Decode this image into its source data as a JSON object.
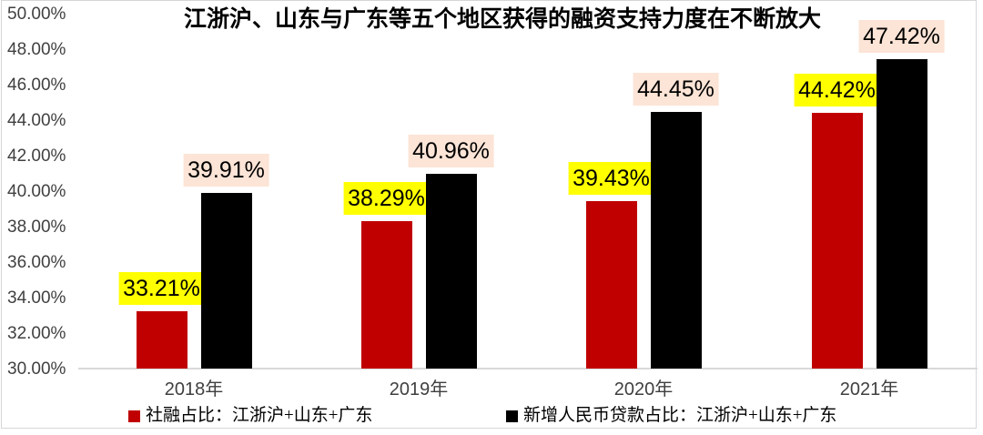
{
  "chart_data": {
    "type": "bar",
    "title": "江浙沪、山东与广东等五个地区获得的融资支持力度在不断放大",
    "categories": [
      "2018年",
      "2019年",
      "2020年",
      "2021年"
    ],
    "series": [
      {
        "name": "社融占比：江浙沪+山东+广东",
        "color": "#C00000",
        "label_bg": "#FFFF00",
        "values": [
          33.21,
          38.29,
          39.43,
          44.42
        ],
        "value_labels": [
          "33.21%",
          "38.29%",
          "39.43%",
          "44.42%"
        ]
      },
      {
        "name": "新增人民币贷款占比：江浙沪+山东+广东",
        "color": "#000000",
        "label_bg": "#FCE4D6",
        "values": [
          39.91,
          40.96,
          44.45,
          47.42
        ],
        "value_labels": [
          "39.91%",
          "40.96%",
          "44.45%",
          "47.42%"
        ]
      }
    ],
    "xlabel": "",
    "ylabel": "",
    "ylim": [
      30,
      50
    ],
    "ytick_step": 2,
    "yticks": [
      "50.00%",
      "48.00%",
      "46.00%",
      "44.00%",
      "42.00%",
      "40.00%",
      "38.00%",
      "36.00%",
      "34.00%",
      "32.00%",
      "30.00%"
    ],
    "grid": false,
    "legend_position": "bottom",
    "colors": {
      "axis_line": "#d9d9d9",
      "tick_text": "#404040",
      "border": "#d6d6d6",
      "label_text": "#000000"
    }
  }
}
